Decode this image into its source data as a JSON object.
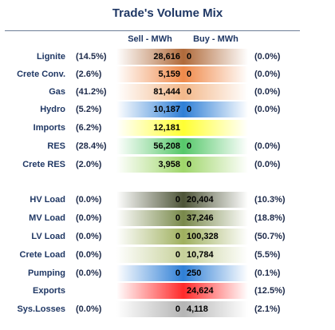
{
  "title": "Trade's Volume Mix",
  "headers": {
    "sell": "Sell - MWh",
    "buy": "Buy - MWh"
  },
  "rows": [
    {
      "label": "Lignite",
      "left_pct": "(14.5%)",
      "sell": "28,616",
      "buy": "0",
      "right_pct": "(0.0%)",
      "color": "#b06a3a"
    },
    {
      "label": "Crete Conv.",
      "left_pct": "(2.6%)",
      "sell": "5,159",
      "buy": "0",
      "right_pct": "(0.0%)",
      "color": "#f08a4a"
    },
    {
      "label": "Gas",
      "left_pct": "(41.2%)",
      "sell": "81,444",
      "buy": "0",
      "right_pct": "(0.0%)",
      "color": "#f3b88a"
    },
    {
      "label": "Hydro",
      "left_pct": "(5.2%)",
      "sell": "10,187",
      "buy": "0",
      "right_pct": "(0.0%)",
      "color": "#2f7fd6"
    },
    {
      "label": "Imports",
      "left_pct": "(6.2%)",
      "sell": "12,181",
      "buy": "",
      "right_pct": "",
      "color": "#ffff33"
    },
    {
      "label": "RES",
      "left_pct": "(28.4%)",
      "sell": "56,208",
      "buy": "0",
      "right_pct": "(0.0%)",
      "color": "#56c86a"
    },
    {
      "label": "Crete RES",
      "left_pct": "(2.0%)",
      "sell": "3,958",
      "buy": "0",
      "right_pct": "(0.0%)",
      "color": "#9fd66a"
    },
    {
      "label": "HV Load",
      "left_pct": "(0.0%)",
      "sell": "0",
      "buy": "20,404",
      "right_pct": "(10.3%)",
      "color": "#4d5437"
    },
    {
      "label": "MV Load",
      "left_pct": "(0.0%)",
      "sell": "0",
      "buy": "37,246",
      "right_pct": "(18.8%)",
      "color": "#78884a"
    },
    {
      "label": "LV Load",
      "left_pct": "(0.0%)",
      "sell": "0",
      "buy": "100,328",
      "right_pct": "(50.7%)",
      "color": "#9fb05e"
    },
    {
      "label": "Crete Load",
      "left_pct": "(0.0%)",
      "sell": "0",
      "buy": "10,784",
      "right_pct": "(5.5%)",
      "color": "#c7d19a"
    },
    {
      "label": "Pumping",
      "left_pct": "(0.0%)",
      "sell": "0",
      "buy": "250",
      "right_pct": "(0.1%)",
      "color": "#2f7fd6"
    },
    {
      "label": "Exports",
      "left_pct": "",
      "sell": "",
      "buy": "24,624",
      "right_pct": "(12.5%)",
      "color": "#ff2a2a"
    },
    {
      "label": "Sys.Losses",
      "left_pct": "(0.0%)",
      "sell": "0",
      "buy": "4,118",
      "right_pct": "(2.1%)",
      "color": "#b5b5b5"
    }
  ]
}
